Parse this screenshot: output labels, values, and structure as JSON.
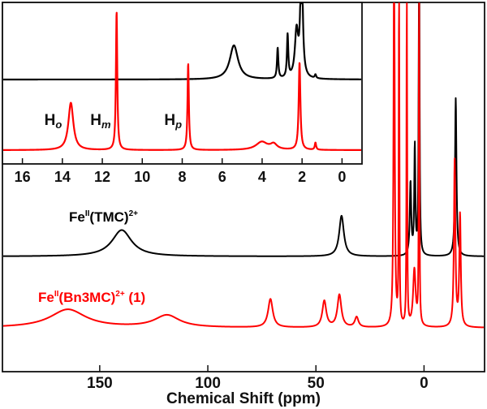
{
  "chart_data": [
    {
      "type": "line",
      "panel": "main",
      "xlabel": "Chemical Shift (ppm)",
      "xlim": [
        195,
        -28
      ],
      "xticks": [
        150,
        100,
        50,
        0
      ],
      "grid": false,
      "series": [
        {
          "name": "Fe(II)(TMC)2+",
          "label": {
            "base": "Fe",
            "sup1": "II",
            "mid": "(TMC)",
            "sup2": "2+",
            "tail": ""
          },
          "color": "#000000",
          "peaks": [
            {
              "x": 140,
              "height": 0.13,
              "width": 5.5
            },
            {
              "x": 38,
              "height": 0.2,
              "width": 1.3
            },
            {
              "x": 6,
              "height": 0.36,
              "width": 0.4
            },
            {
              "x": 4,
              "height": 0.54,
              "width": 0.3
            },
            {
              "x": 2,
              "height": 2.0,
              "width": 0.2
            },
            {
              "x": -15,
              "height": 0.78,
              "width": 0.4
            }
          ]
        },
        {
          "name": "Fe(II)(Bn3MC)2+ (1)",
          "label": {
            "base": "Fe",
            "sup1": "II",
            "mid": "(Bn3MC)",
            "sup2": "2+",
            "tail": " (1)"
          },
          "color": "#ff0000",
          "peaks": [
            {
              "x": 165,
              "height": 0.09,
              "width": 10
            },
            {
              "x": 119,
              "height": 0.06,
              "width": 7
            },
            {
              "x": 71,
              "height": 0.14,
              "width": 1.3
            },
            {
              "x": 46,
              "height": 0.13,
              "width": 1.1
            },
            {
              "x": 39,
              "height": 0.16,
              "width": 1.1
            },
            {
              "x": 31,
              "height": 0.05,
              "width": 1.0
            },
            {
              "x": 13.6,
              "height": 2.0,
              "width": 0.3
            },
            {
              "x": 11.3,
              "height": 2.0,
              "width": 0.15
            },
            {
              "x": 7.7,
              "height": 2.0,
              "width": 0.15
            },
            {
              "x": 4.2,
              "height": 0.28,
              "width": 0.7
            },
            {
              "x": 2,
              "height": 2.0,
              "width": 0.15
            },
            {
              "x": -14.5,
              "height": 0.82,
              "width": 0.4
            },
            {
              "x": -17,
              "height": 0.55,
              "width": 0.4
            }
          ]
        }
      ]
    },
    {
      "type": "line",
      "panel": "inset",
      "xlim": [
        17,
        -1
      ],
      "xticks": [
        16,
        14,
        12,
        10,
        8,
        6,
        4,
        2,
        0
      ],
      "grid": false,
      "annotations": [
        {
          "base": "H",
          "sub": "o",
          "x": 14.9
        },
        {
          "base": "H",
          "sub": "m",
          "x": 12.6
        },
        {
          "base": "H",
          "sub": "p",
          "x": 8.9
        }
      ],
      "series": [
        {
          "name": "Fe(II)(TMC)2+",
          "color": "#000000",
          "peaks": [
            {
              "x": 5.4,
              "height": 0.28,
              "width": 0.25
            },
            {
              "x": 3.2,
              "height": 0.25,
              "width": 0.04
            },
            {
              "x": 2.7,
              "height": 0.35,
              "width": 0.04
            },
            {
              "x": 2.25,
              "height": 0.38,
              "width": 0.1
            },
            {
              "x": 2.0,
              "height": 1.2,
              "width": 0.06
            },
            {
              "x": 1.3,
              "height": 0.03,
              "width": 0.04
            }
          ]
        },
        {
          "name": "Fe(II)(Bn3MC)2+ (1)",
          "color": "#ff0000",
          "peaks": [
            {
              "x": 13.6,
              "height": 0.53,
              "width": 0.15
            },
            {
              "x": 11.3,
              "height": 1.55,
              "width": 0.04
            },
            {
              "x": 7.7,
              "height": 0.97,
              "width": 0.04
            },
            {
              "x": 4.0,
              "height": 0.09,
              "width": 0.35
            },
            {
              "x": 3.4,
              "height": 0.06,
              "width": 0.2
            },
            {
              "x": 2.1,
              "height": 0.98,
              "width": 0.05
            },
            {
              "x": 1.3,
              "height": 0.08,
              "width": 0.04
            }
          ]
        }
      ]
    }
  ]
}
